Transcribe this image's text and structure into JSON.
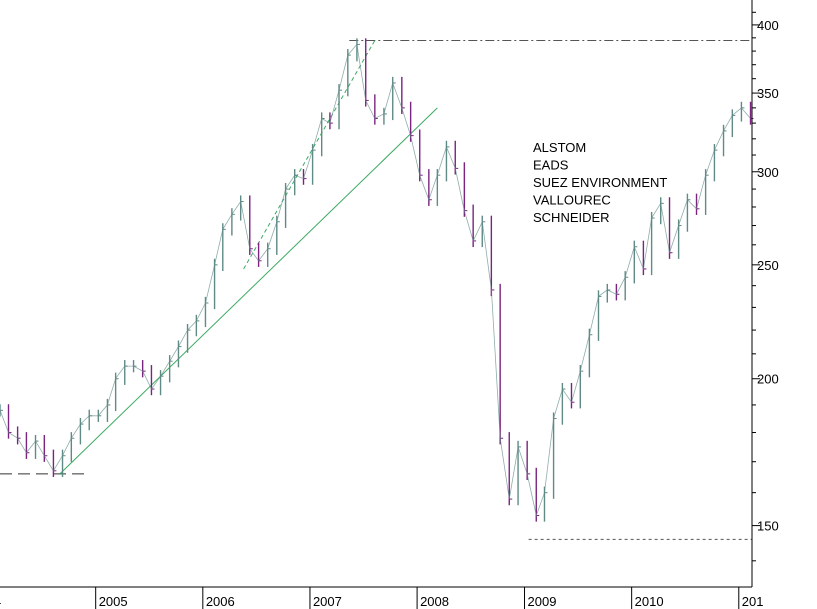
{
  "chart_data": {
    "type": "line",
    "title": "",
    "xlabel": "",
    "ylabel": "",
    "y_scale": "log",
    "ylim": [
      133,
      420
    ],
    "y_ticks": [
      150,
      200,
      250,
      300,
      350,
      400
    ],
    "x_tick_labels": [
      "4",
      "2005",
      "2006",
      "2007",
      "2008",
      "2009",
      "2010",
      "201"
    ],
    "x_tick_dates": [
      "2004-01-01",
      "2005-01-01",
      "2006-01-01",
      "2007-01-01",
      "2008-01-01",
      "2009-01-01",
      "2010-01-01",
      "2011-01-01"
    ],
    "xlim": [
      "2004-02-10",
      "2011-02-15"
    ],
    "grid": false,
    "legend_position": "center-right",
    "legend_entries": [
      "ALSTOM",
      "EADS",
      "SUEZ ENVIRONMENT",
      "VALLOUREC",
      "SCHNEIDER"
    ],
    "colors": {
      "axis": "#000000",
      "price_up": "#5f8a86",
      "price_down": "#7a2480",
      "trendline": "#3aaa60",
      "reference": "#555555"
    },
    "series": [
      {
        "values": [
          [
            "2004-02-10",
            188
          ],
          [
            "2004-03-10",
            180
          ],
          [
            "2004-04-10",
            178
          ],
          [
            "2004-05-10",
            173
          ],
          [
            "2004-06-10",
            177
          ],
          [
            "2004-07-10",
            172
          ],
          [
            "2004-08-10",
            167
          ],
          [
            "2004-09-10",
            172
          ],
          [
            "2004-10-10",
            178
          ],
          [
            "2004-11-10",
            183
          ],
          [
            "2004-12-10",
            186
          ],
          [
            "2005-01-10",
            186
          ],
          [
            "2005-02-10",
            190
          ],
          [
            "2005-03-10",
            200
          ],
          [
            "2005-04-10",
            205
          ],
          [
            "2005-05-10",
            205
          ],
          [
            "2005-06-10",
            203
          ],
          [
            "2005-07-10",
            196
          ],
          [
            "2005-08-10",
            201
          ],
          [
            "2005-09-10",
            207
          ],
          [
            "2005-10-10",
            213
          ],
          [
            "2005-11-10",
            220
          ],
          [
            "2005-12-10",
            224
          ],
          [
            "2006-01-10",
            232
          ],
          [
            "2006-02-10",
            250
          ],
          [
            "2006-03-10",
            268
          ],
          [
            "2006-04-10",
            276
          ],
          [
            "2006-05-10",
            283
          ],
          [
            "2006-06-10",
            258
          ],
          [
            "2006-07-10",
            252
          ],
          [
            "2006-08-10",
            258
          ],
          [
            "2006-09-10",
            272
          ],
          [
            "2006-10-10",
            290
          ],
          [
            "2006-11-10",
            298
          ],
          [
            "2006-12-10",
            296
          ],
          [
            "2007-01-10",
            313
          ],
          [
            "2007-02-10",
            333
          ],
          [
            "2007-03-10",
            330
          ],
          [
            "2007-04-10",
            352
          ],
          [
            "2007-05-10",
            377
          ],
          [
            "2007-06-10",
            385
          ],
          [
            "2007-07-10",
            345
          ],
          [
            "2007-08-10",
            333
          ],
          [
            "2007-09-10",
            336
          ],
          [
            "2007-10-10",
            357
          ],
          [
            "2007-11-10",
            340
          ],
          [
            "2007-12-10",
            322
          ],
          [
            "2008-01-10",
            298
          ],
          [
            "2008-02-10",
            284
          ],
          [
            "2008-03-10",
            298
          ],
          [
            "2008-04-10",
            315
          ],
          [
            "2008-05-10",
            302
          ],
          [
            "2008-06-10",
            278
          ],
          [
            "2008-07-10",
            262
          ],
          [
            "2008-08-10",
            272
          ],
          [
            "2008-09-10",
            238
          ],
          [
            "2008-10-10",
            178
          ],
          [
            "2008-11-10",
            158
          ],
          [
            "2008-12-10",
            175
          ],
          [
            "2009-01-10",
            166
          ],
          [
            "2009-02-10",
            153
          ],
          [
            "2009-03-10",
            160
          ],
          [
            "2009-04-10",
            185
          ],
          [
            "2009-05-10",
            196
          ],
          [
            "2009-06-10",
            191
          ],
          [
            "2009-07-10",
            203
          ],
          [
            "2009-08-10",
            218
          ],
          [
            "2009-09-10",
            235
          ],
          [
            "2009-10-10",
            238
          ],
          [
            "2009-11-10",
            236
          ],
          [
            "2009-12-10",
            244
          ],
          [
            "2010-01-10",
            259
          ],
          [
            "2010-02-10",
            248
          ],
          [
            "2010-03-10",
            274
          ],
          [
            "2010-04-10",
            282
          ],
          [
            "2010-05-10",
            256
          ],
          [
            "2010-06-10",
            270
          ],
          [
            "2010-07-10",
            284
          ],
          [
            "2010-08-10",
            279
          ],
          [
            "2010-09-10",
            298
          ],
          [
            "2010-10-10",
            313
          ],
          [
            "2010-11-10",
            325
          ],
          [
            "2010-12-10",
            335
          ],
          [
            "2011-01-10",
            340
          ],
          [
            "2011-02-10",
            333
          ]
        ]
      }
    ],
    "reference_lines": [
      {
        "kind": "horizontal",
        "style": "dash-dot",
        "y": 388,
        "from": "2007-05-15",
        "to": "2011-02-15"
      },
      {
        "kind": "horizontal",
        "style": "dotted",
        "y": 146,
        "from": "2009-01-15",
        "to": "2011-02-15"
      },
      {
        "kind": "horizontal",
        "style": "long-dash",
        "y": 166,
        "from": "2004-02-10",
        "to": "2004-12-05"
      },
      {
        "kind": "trendline",
        "style": "solid",
        "from": [
          "2004-09-01",
          166
        ],
        "to": [
          "2008-03-10",
          340
        ]
      },
      {
        "kind": "trendline",
        "style": "dashed",
        "from": [
          "2006-05-20",
          248
        ],
        "to": [
          "2007-08-10",
          388
        ]
      }
    ]
  }
}
